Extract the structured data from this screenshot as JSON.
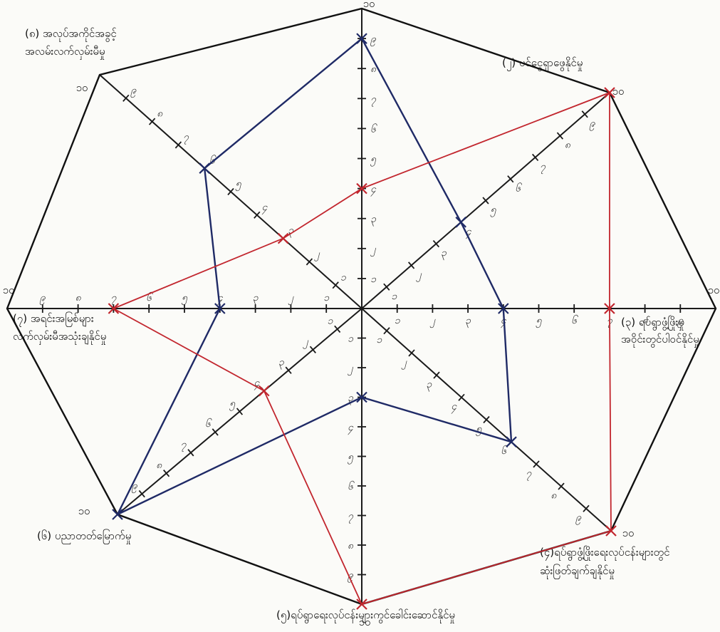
{
  "chart_data": {
    "type": "radar",
    "axes_count": 8,
    "scale_max": 10,
    "tick_labels": [
      "၁",
      "၂",
      "၃",
      "၄",
      "၅",
      "၆",
      "၇",
      "၈",
      "၉"
    ],
    "end_label": "၁၀",
    "categories": [
      "(၂) ပင်ငွေရှာဖွေနိုင်မှု",
      "(၃) ရပ်ရွာဖွံ့ဖြိုးမှု အဝိုင်းတွင်ပါဝင်နိုင်မှု",
      "(၄)ရပ်ရွာဖွံ့ဖြိုးရေးလုပ်ငန်းများတွင် ဆုံးဖြတ်ချက်ချနိုင်မှု",
      "(၅)ရပ်ရွာရေးလုပ်ငန်းများကွင်ခေါင်းဆောင်နိုင်မှု",
      "(၆) ပညာတတ်မြောက်မှု",
      "(၇) အရင်းအမြစ်များ လက်လှမ်းမီအသုံးချနိုင်မှု",
      "(၈) အလုပ်အကိုင်အခွင့် အလမ်းလက်လှမ်းမီမှု",
      "(၁) —"
    ],
    "series": [
      {
        "color": "#1f2a66",
        "values": [
          4,
          4,
          6,
          3,
          10,
          4,
          6,
          9
        ]
      },
      {
        "color": "#c2262e",
        "values": [
          10,
          7,
          10,
          10,
          4,
          7,
          3,
          4
        ]
      }
    ]
  }
}
